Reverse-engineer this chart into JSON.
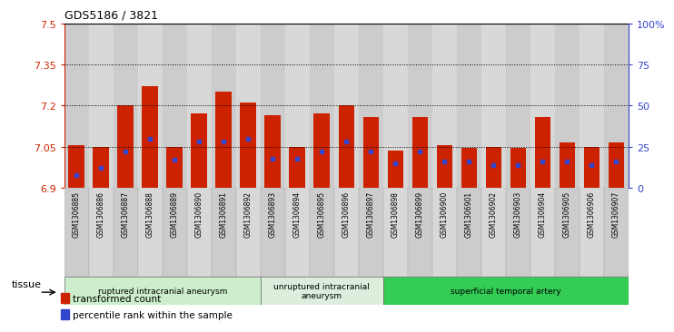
{
  "title": "GDS5186 / 3821",
  "samples": [
    "GSM1306885",
    "GSM1306886",
    "GSM1306887",
    "GSM1306888",
    "GSM1306889",
    "GSM1306890",
    "GSM1306891",
    "GSM1306892",
    "GSM1306893",
    "GSM1306894",
    "GSM1306895",
    "GSM1306896",
    "GSM1306897",
    "GSM1306898",
    "GSM1306899",
    "GSM1306900",
    "GSM1306901",
    "GSM1306902",
    "GSM1306903",
    "GSM1306904",
    "GSM1306905",
    "GSM1306906",
    "GSM1306907"
  ],
  "transformed_count": [
    7.055,
    7.05,
    7.2,
    7.27,
    7.05,
    7.17,
    7.25,
    7.21,
    7.165,
    7.05,
    7.17,
    7.2,
    7.16,
    7.035,
    7.16,
    7.055,
    7.045,
    7.05,
    7.045,
    7.16,
    7.065,
    7.05,
    7.065
  ],
  "percentile_rank": [
    8,
    12,
    22,
    30,
    17,
    28,
    28,
    30,
    18,
    18,
    22,
    28,
    22,
    15,
    22,
    16,
    16,
    14,
    14,
    16,
    16,
    14,
    16
  ],
  "y_min": 6.9,
  "y_max": 7.5,
  "y_ticks": [
    6.9,
    7.05,
    7.2,
    7.35,
    7.5
  ],
  "y_tick_labels": [
    "6.9",
    "7.05",
    "7.2",
    "7.35",
    "7.5"
  ],
  "right_y_ticks": [
    0,
    25,
    50,
    75,
    100
  ],
  "right_y_tick_labels": [
    "0",
    "25",
    "50",
    "75",
    "100%"
  ],
  "bar_color": "#cc2200",
  "dot_color": "#3344cc",
  "base_value": 6.9,
  "groups": [
    {
      "label": "ruptured intracranial aneurysm",
      "start": 0,
      "end": 8,
      "color": "#cceecc"
    },
    {
      "label": "unruptured intracranial\naneurysm",
      "start": 8,
      "end": 13,
      "color": "#ddeedd"
    },
    {
      "label": "superficial temporal artery",
      "start": 13,
      "end": 23,
      "color": "#33cc55"
    }
  ],
  "tissue_label": "tissue",
  "dotted_lines": [
    7.05,
    7.2,
    7.35
  ],
  "bar_width": 0.65,
  "col_colors": [
    "#cccccc",
    "#d8d8d8"
  ]
}
